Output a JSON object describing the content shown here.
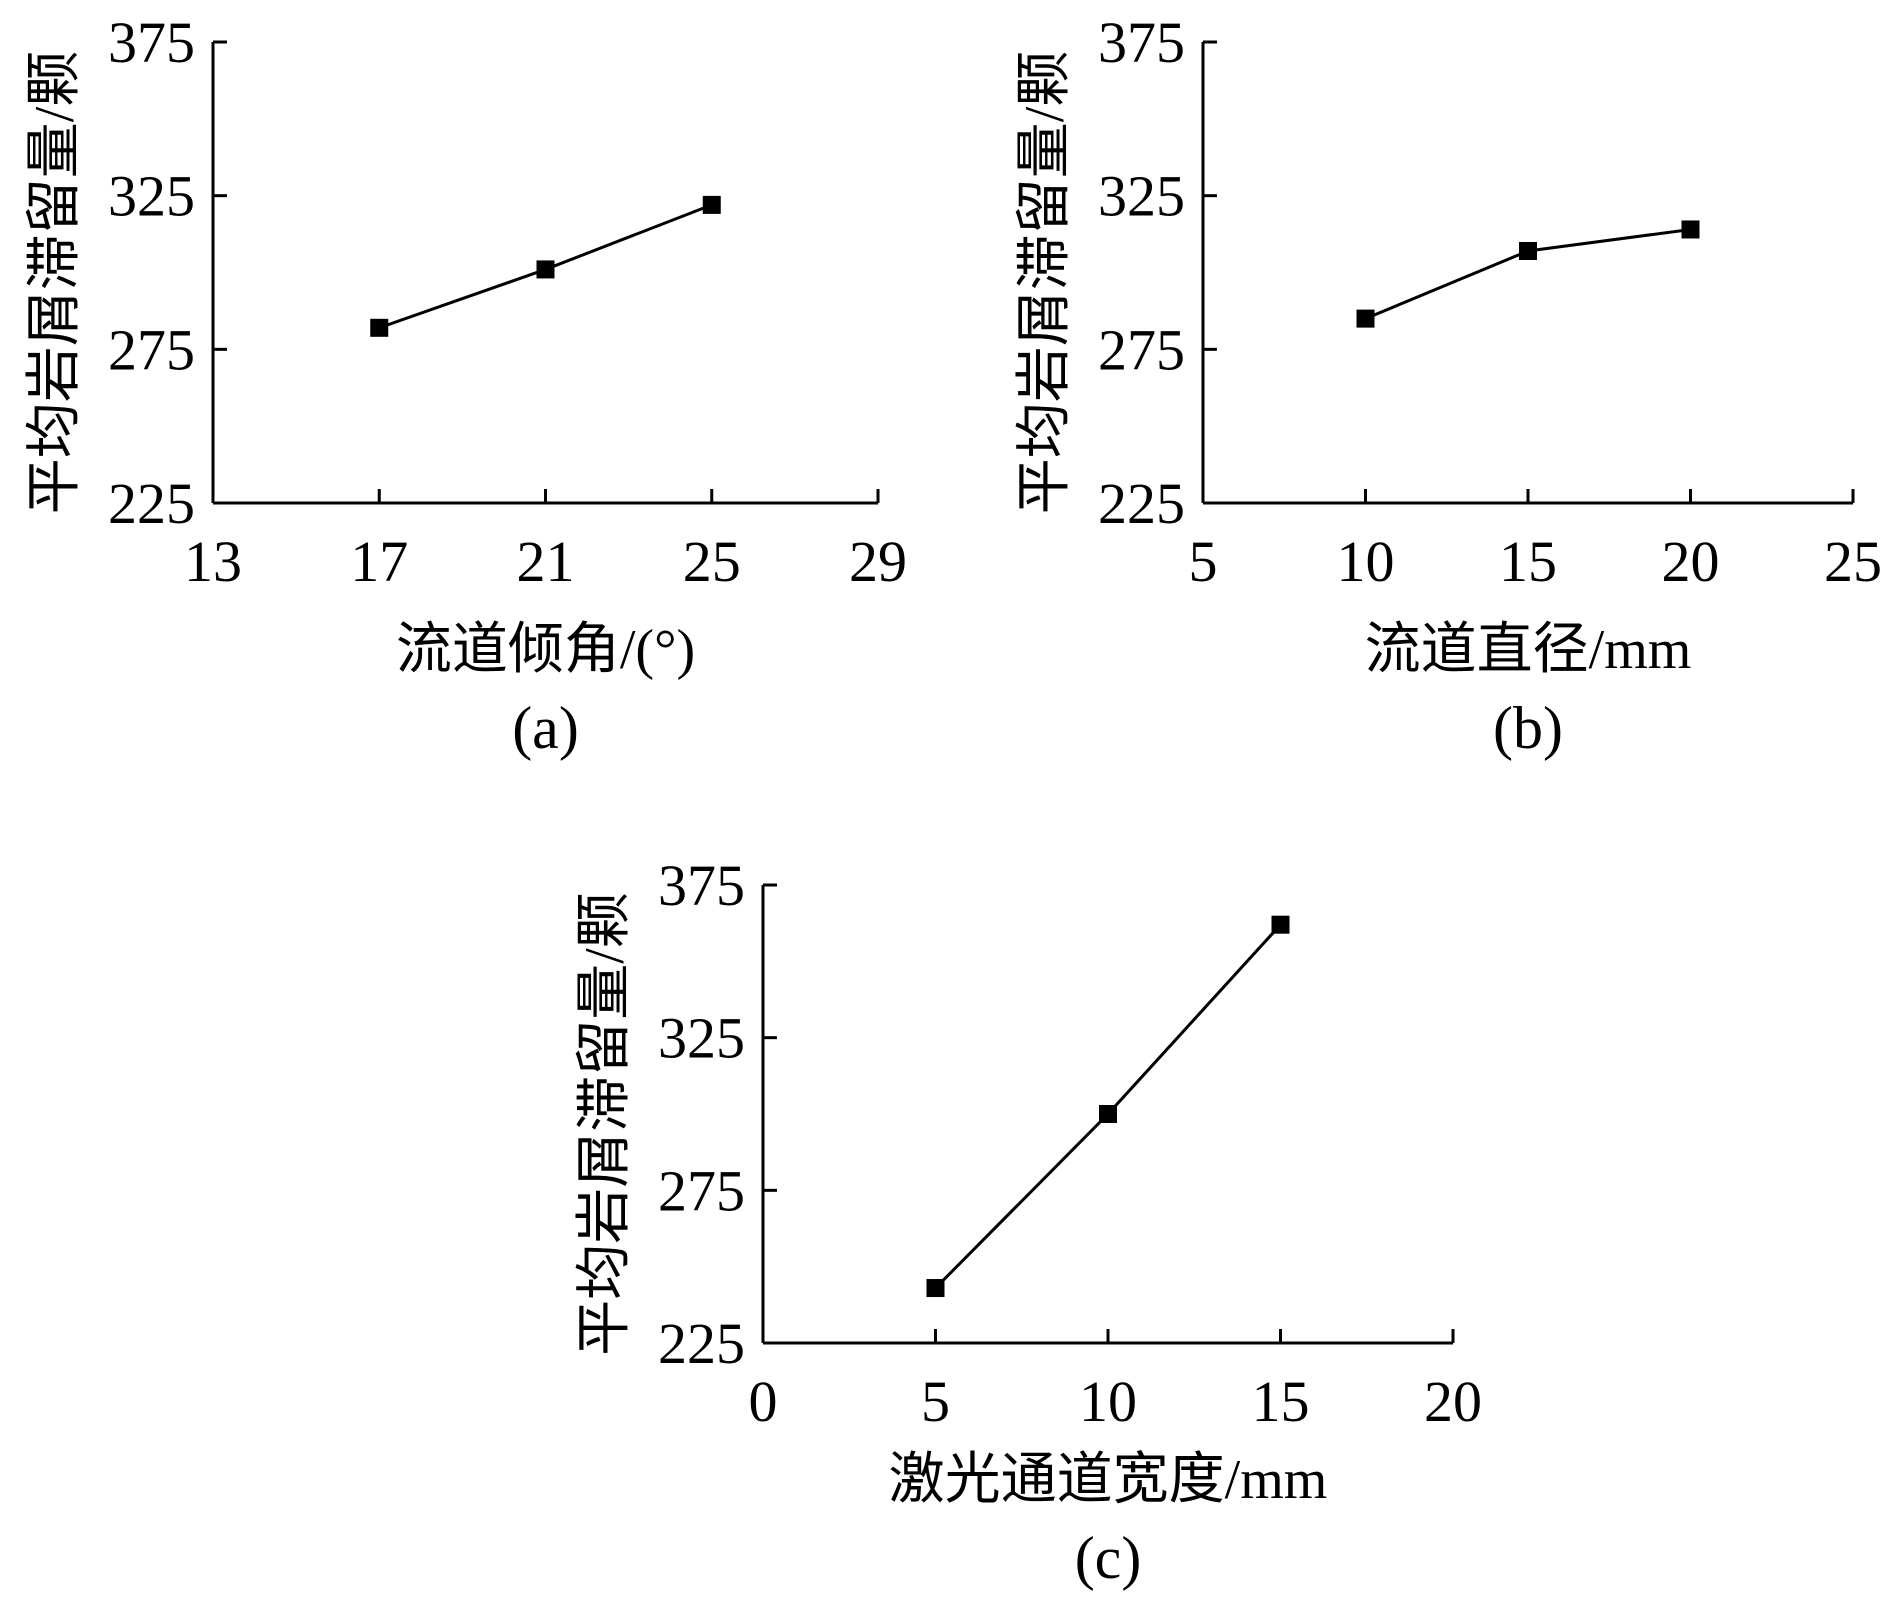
{
  "chart_data": [
    {
      "type": "line",
      "panel_label": "(a)",
      "xlabel": "流道倾角/(°)",
      "ylabel": "平均岩屑滞留量/颗",
      "xlim": [
        13,
        29
      ],
      "ylim": [
        225,
        375
      ],
      "xticks": [
        13,
        17,
        21,
        25,
        29
      ],
      "yticks": [
        225,
        275,
        325,
        375
      ],
      "x": [
        17,
        21,
        25
      ],
      "y": [
        282,
        301,
        322
      ],
      "grid": false,
      "marker": "square",
      "color": "#000000"
    },
    {
      "type": "line",
      "panel_label": "(b)",
      "xlabel": "流道直径/mm",
      "ylabel": "平均岩屑滞留量/颗",
      "xlim": [
        5,
        25
      ],
      "ylim": [
        225,
        375
      ],
      "xticks": [
        5,
        10,
        15,
        20,
        25
      ],
      "yticks": [
        225,
        275,
        325,
        375
      ],
      "x": [
        10,
        15,
        20
      ],
      "y": [
        285,
        307,
        314
      ],
      "grid": false,
      "marker": "square",
      "color": "#000000"
    },
    {
      "type": "line",
      "panel_label": "(c)",
      "xlabel": "激光通道宽度/mm",
      "ylabel": "平均岩屑滞留量/颗",
      "xlim": [
        0,
        20
      ],
      "ylim": [
        225,
        375
      ],
      "xticks": [
        0,
        5,
        10,
        15,
        20
      ],
      "yticks": [
        225,
        275,
        325,
        375
      ],
      "x": [
        5,
        10,
        15
      ],
      "y": [
        243,
        300,
        362
      ],
      "grid": false,
      "marker": "square",
      "color": "#000000"
    }
  ]
}
